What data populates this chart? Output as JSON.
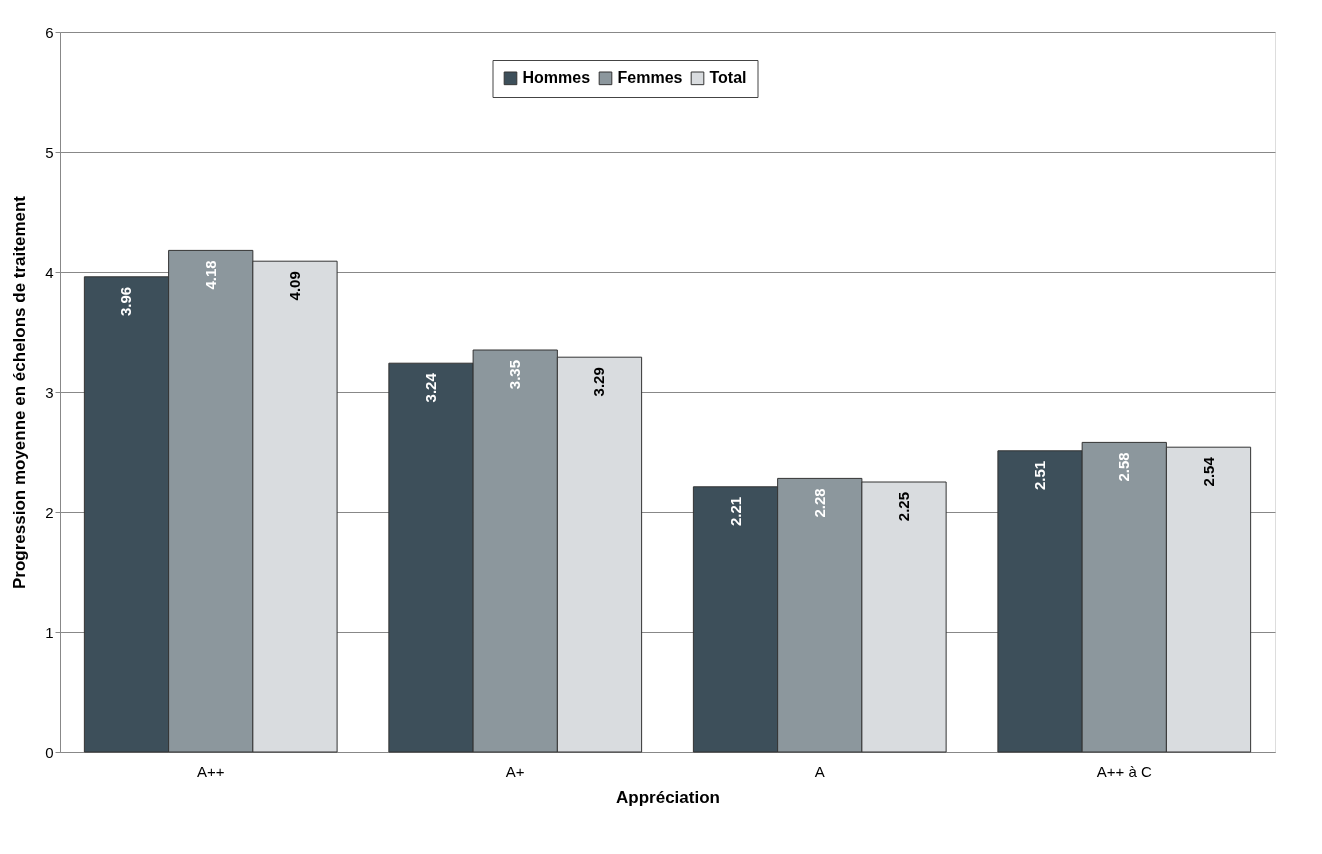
{
  "chart_data": {
    "type": "bar",
    "xlabel": "Appréciation",
    "ylabel": "Progression moyenne en échelons de traitement",
    "categories": [
      "A++",
      "A+",
      "A",
      "A++ à C"
    ],
    "series": [
      {
        "name": "Hommes",
        "color": "#3d4f5a",
        "values": [
          3.96,
          3.24,
          2.21,
          2.51
        ]
      },
      {
        "name": "Femmes",
        "color": "#8c979d",
        "values": [
          4.18,
          3.35,
          2.28,
          2.58
        ]
      },
      {
        "name": "Total",
        "color": "#d9dcdf",
        "values": [
          4.09,
          3.29,
          2.25,
          2.54
        ]
      }
    ],
    "ylim": [
      0,
      6
    ],
    "yticks": [
      0,
      1,
      2,
      3,
      4,
      5,
      6
    ],
    "grid": "y",
    "legend": "top",
    "data_labels": true
  }
}
